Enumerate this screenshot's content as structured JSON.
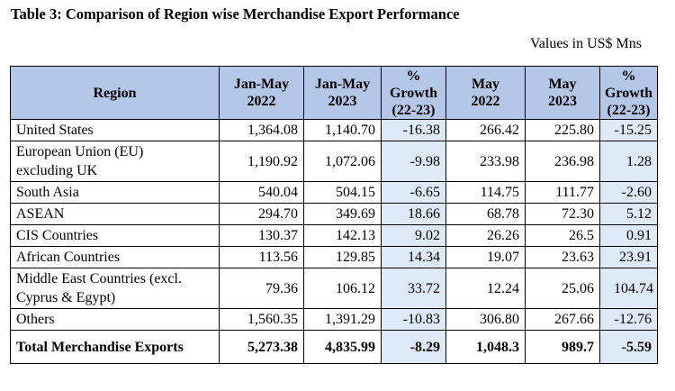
{
  "title": "Table 3: Comparison of Region wise Merchandise Export Performance",
  "units": "Values in US$ Mns",
  "headers": {
    "region": "Region",
    "jan_may_2022": [
      "Jan-May",
      "2022"
    ],
    "jan_may_2023": [
      "Jan-May",
      "2023"
    ],
    "growth_1": [
      "%",
      "Growth",
      "(22-23)"
    ],
    "may_2022": [
      "May",
      "2022"
    ],
    "may_2023": [
      "May",
      "2023"
    ],
    "growth_2": [
      "%",
      "Growth",
      "(22-23)"
    ]
  },
  "rows": [
    {
      "region": [
        "United States"
      ],
      "c1": "1,364.08",
      "c2": "1,140.70",
      "c3": "-16.38",
      "c4": "266.42",
      "c5": "225.80",
      "c6": "-15.25"
    },
    {
      "region": [
        "European Union (EU)",
        "excluding UK"
      ],
      "c1": "1,190.92",
      "c2": "1,072.06",
      "c3": "-9.98",
      "c4": "233.98",
      "c5": "236.98",
      "c6": "1.28"
    },
    {
      "region": [
        "South Asia"
      ],
      "c1": "540.04",
      "c2": "504.15",
      "c3": "-6.65",
      "c4": "114.75",
      "c5": "111.77",
      "c6": "-2.60"
    },
    {
      "region": [
        "ASEAN"
      ],
      "c1": "294.70",
      "c2": "349.69",
      "c3": "18.66",
      "c4": "68.78",
      "c5": "72.30",
      "c6": "5.12"
    },
    {
      "region": [
        "CIS Countries"
      ],
      "c1": "130.37",
      "c2": "142.13",
      "c3": "9.02",
      "c4": "26.26",
      "c5": "26.5",
      "c6": "0.91"
    },
    {
      "region": [
        "African Countries"
      ],
      "c1": "113.56",
      "c2": "129.85",
      "c3": "14.34",
      "c4": "19.07",
      "c5": "23.63",
      "c6": "23.91"
    },
    {
      "region": [
        "Middle East Countries (excl.",
        "Cyprus & Egypt)"
      ],
      "c1": "79.36",
      "c2": "106.12",
      "c3": "33.72",
      "c4": "12.24",
      "c5": "25.06",
      "c6": "104.74"
    },
    {
      "region": [
        "Others"
      ],
      "c1": "1,560.35",
      "c2": "1,391.29",
      "c3": "-10.83",
      "c4": "306.80",
      "c5": "267.66",
      "c6": "-12.76"
    }
  ],
  "total": {
    "region": "Total Merchandise Exports",
    "c1": "5,273.38",
    "c2": "4,835.99",
    "c3": "-8.29",
    "c4": "1,048.3",
    "c5": "989.7",
    "c6": "-5.59"
  },
  "colors": {
    "header_bg": "#b4c7e7",
    "growth_bg": "#dde9f7"
  }
}
